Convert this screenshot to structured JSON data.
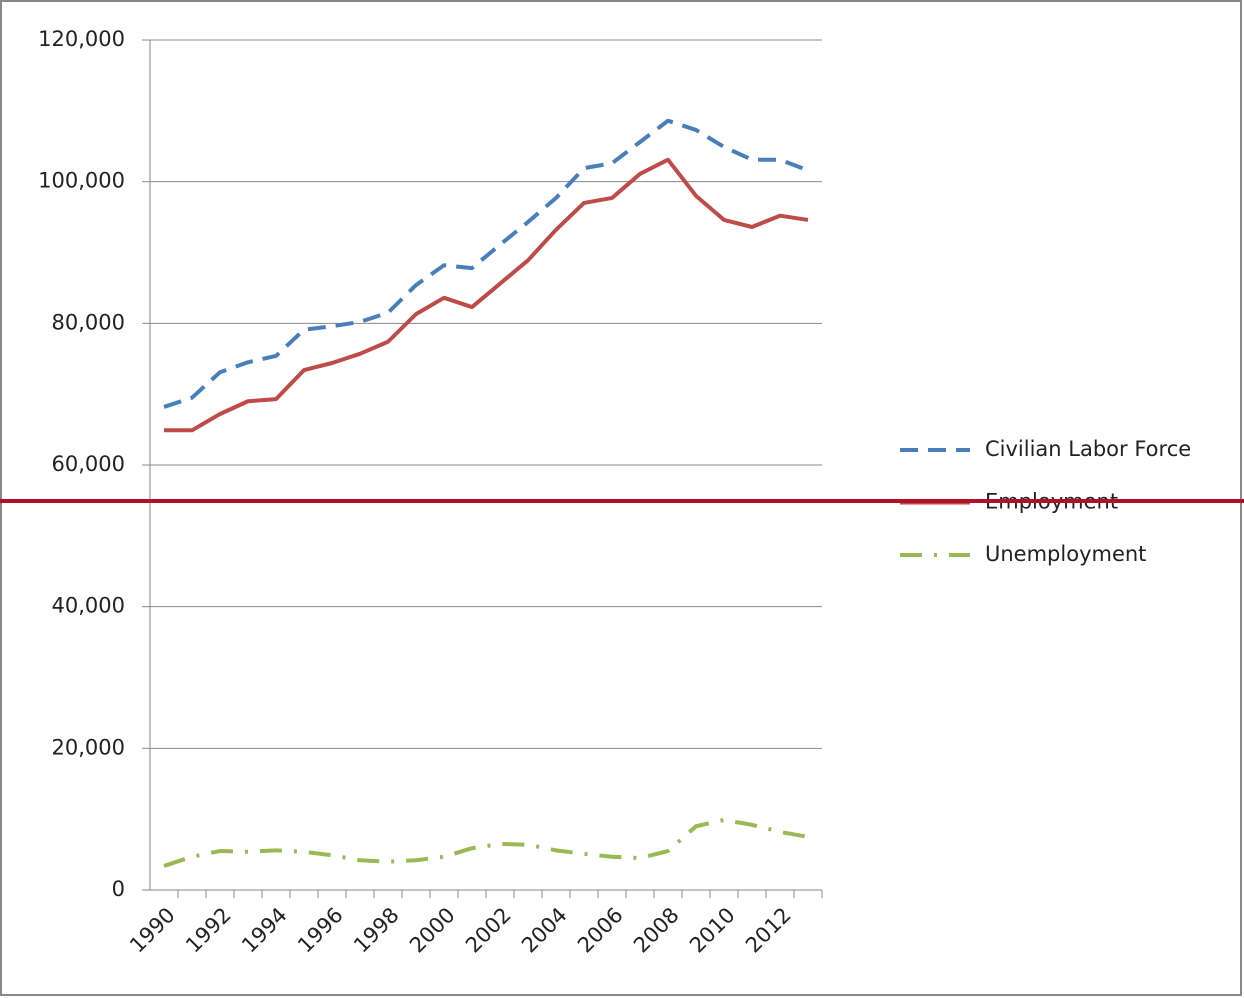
{
  "chart_data": {
    "type": "line",
    "categories": [
      "1990",
      null,
      "1992",
      null,
      "1994",
      null,
      "1996",
      null,
      "1998",
      null,
      "2000",
      null,
      "2002",
      null,
      "2004",
      null,
      "2006",
      null,
      "2008",
      null,
      "2010",
      null,
      "2012",
      null
    ],
    "series": [
      {
        "name": "Civilian Labor Force",
        "color": "#4a7ebb",
        "dash": "dashed",
        "values": [
          68200,
          69500,
          73100,
          74500,
          75400,
          79100,
          79600,
          80200,
          81500,
          85400,
          88200,
          87800,
          91100,
          94300,
          97700,
          101900,
          102600,
          105600,
          108600,
          107300,
          104900,
          103100,
          103100,
          101600
        ]
      },
      {
        "name": "Employment",
        "color": "#be4b48",
        "dash": "solid",
        "values": [
          64900,
          64900,
          67200,
          69000,
          69300,
          73400,
          74400,
          75700,
          77400,
          81300,
          83600,
          82300,
          85600,
          88900,
          93200,
          97000,
          97700,
          101100,
          103100,
          98000,
          94600,
          93600,
          95200,
          94600
        ]
      },
      {
        "name": "Unemployment",
        "color": "#98b954",
        "dash": "dashdot",
        "values": [
          3400,
          4700,
          5500,
          5400,
          5600,
          5400,
          4900,
          4200,
          4000,
          4200,
          4700,
          5900,
          6500,
          6400,
          5600,
          5100,
          4700,
          4500,
          5500,
          9000,
          9900,
          9200,
          8200,
          7500
        ]
      }
    ],
    "ylim": [
      0,
      120000
    ],
    "yticks": [
      0,
      {
        "value": 20000,
        "label": "20,000"
      },
      {
        "value": 40000,
        "label": "40,000"
      },
      {
        "value": 60000,
        "label": "60,000"
      },
      {
        "value": 80000,
        "label": "80,000"
      },
      {
        "value": 100000,
        "label": "100,000"
      },
      {
        "value": 120000,
        "label": "120,000"
      }
    ],
    "grid": true,
    "legend": "right"
  }
}
